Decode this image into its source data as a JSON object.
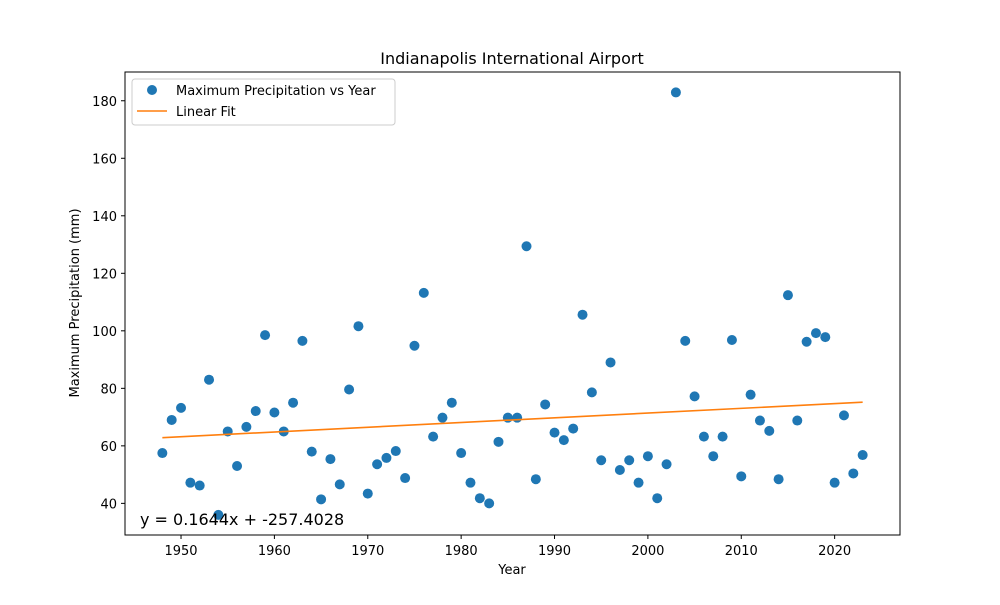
{
  "chart_data": {
    "type": "scatter",
    "title": "Indianapolis International Airport",
    "xlabel": "Year",
    "ylabel": "Maximum Precipitation (mm)",
    "xlim": [
      1944,
      2027
    ],
    "ylim": [
      29,
      190
    ],
    "x_ticks": [
      1950,
      1960,
      1970,
      1980,
      1990,
      2000,
      2010,
      2020
    ],
    "y_ticks": [
      40,
      60,
      80,
      100,
      120,
      140,
      160,
      180
    ],
    "grid": false,
    "legend_position": "top-left",
    "series": [
      {
        "name": "Maximum Precipitation vs Year",
        "kind": "scatter",
        "color": "#1f77b4",
        "x": [
          1948,
          1949,
          1950,
          1951,
          1952,
          1953,
          1954,
          1955,
          1956,
          1957,
          1958,
          1959,
          1960,
          1961,
          1962,
          1963,
          1964,
          1965,
          1966,
          1967,
          1968,
          1969,
          1970,
          1971,
          1972,
          1973,
          1974,
          1975,
          1976,
          1977,
          1978,
          1979,
          1980,
          1981,
          1982,
          1983,
          1984,
          1985,
          1986,
          1987,
          1988,
          1989,
          1990,
          1991,
          1992,
          1993,
          1994,
          1995,
          1996,
          1997,
          1998,
          1999,
          2000,
          2001,
          2002,
          2003,
          2004,
          2005,
          2006,
          2007,
          2008,
          2009,
          2010,
          2011,
          2012,
          2013,
          2014,
          2015,
          2016,
          2017,
          2018,
          2019,
          2020,
          2021,
          2022,
          2023
        ],
        "y": [
          57.5,
          69.0,
          73.2,
          47.2,
          46.2,
          83.0,
          36.0,
          65.0,
          53.0,
          66.6,
          72.1,
          98.5,
          71.6,
          65.0,
          75.0,
          96.5,
          58.0,
          41.4,
          55.4,
          46.6,
          79.6,
          101.6,
          43.4,
          53.6,
          55.8,
          58.2,
          48.8,
          94.8,
          113.2,
          63.2,
          69.8,
          75.0,
          57.5,
          47.2,
          41.8,
          40.0,
          61.4,
          69.8,
          69.8,
          129.4,
          48.4,
          74.4,
          64.6,
          62.0,
          66.0,
          105.6,
          78.6,
          55.0,
          89.0,
          51.6,
          55.0,
          47.2,
          56.4,
          41.8,
          53.6,
          182.9,
          96.5,
          77.2,
          63.2,
          56.4,
          63.2,
          96.8,
          49.4,
          77.8,
          68.8,
          65.2,
          48.4,
          112.4,
          68.8,
          96.2,
          99.2,
          97.8,
          47.2,
          70.6,
          50.4,
          56.8
        ]
      },
      {
        "name": "Linear Fit",
        "kind": "line",
        "color": "#ff7f0e",
        "slope": 0.1644,
        "intercept": -257.4028,
        "x_range": [
          1948,
          2023
        ]
      }
    ],
    "annotation": "y = 0.1644x + -257.4028"
  }
}
